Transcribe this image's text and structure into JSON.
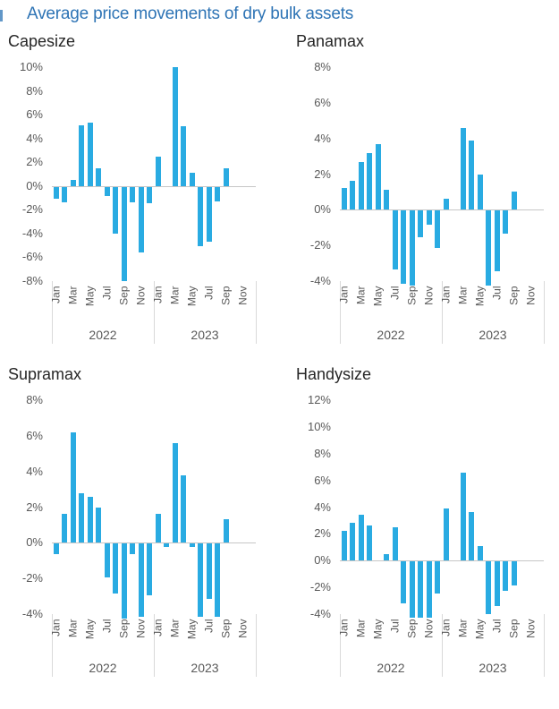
{
  "page": {
    "title": "Average price movements of dry bulk assets",
    "colors": {
      "title_blue": "#2e74b5",
      "bar_blue": "#29abe2",
      "axis_text_grey": "#595959",
      "zero_line_grey": "#c6c6c6",
      "separator_grey": "#d9d9d9",
      "chart_title_dark": "#262626",
      "background": "#ffffff"
    }
  },
  "chart_data": [
    {
      "type": "bar",
      "title": "Capesize",
      "ylabel": "",
      "xlabel": "",
      "ylim": [
        -8,
        10
      ],
      "ytick_step": 2,
      "ytick_labels": [
        "10%",
        "8%",
        "6%",
        "4%",
        "2%",
        "0%",
        "-2%",
        "-4%",
        "-6%",
        "-8%"
      ],
      "grid": "zero-axis-line-only",
      "legend": "none",
      "bar_color": "#29abe2",
      "years": [
        "2022",
        "2023"
      ],
      "month_ticks": [
        "Jan",
        "Mar",
        "May",
        "Jul",
        "Sep",
        "Nov"
      ],
      "categories": [
        "Jan 2022",
        "Feb 2022",
        "Mar 2022",
        "Apr 2022",
        "May 2022",
        "Jun 2022",
        "Jul 2022",
        "Aug 2022",
        "Sep 2022",
        "Oct 2022",
        "Nov 2022",
        "Dec 2022",
        "Jan 2023",
        "Feb 2023",
        "Mar 2023",
        "Apr 2023",
        "May 2023",
        "Jun 2023",
        "Jul 2023",
        "Aug 2023",
        "Sep 2023",
        "Oct 2023",
        "Nov 2023",
        "Dec 2023"
      ],
      "values": [
        -1.0,
        -1.3,
        0.5,
        5.1,
        5.3,
        1.5,
        -0.8,
        -3.9,
        -7.9,
        -1.3,
        -5.5,
        -1.4,
        2.5,
        0,
        10.0,
        5.0,
        1.1,
        -5.0,
        -4.6,
        -1.2,
        1.5,
        null,
        null,
        null
      ]
    },
    {
      "type": "bar",
      "title": "Panamax",
      "ylabel": "",
      "xlabel": "",
      "ylim": [
        -4,
        8
      ],
      "ytick_step": 2,
      "ytick_labels": [
        "8%",
        "6%",
        "4%",
        "2%",
        "0%",
        "-2%",
        "-4%"
      ],
      "grid": "zero-axis-line-only",
      "legend": "none",
      "bar_color": "#29abe2",
      "years": [
        "2022",
        "2023"
      ],
      "month_ticks": [
        "Jan",
        "Mar",
        "May",
        "Jul",
        "Sep",
        "Nov"
      ],
      "categories": [
        "Jan 2022",
        "Feb 2022",
        "Mar 2022",
        "Apr 2022",
        "May 2022",
        "Jun 2022",
        "Jul 2022",
        "Aug 2022",
        "Sep 2022",
        "Oct 2022",
        "Nov 2022",
        "Dec 2022",
        "Jan 2023",
        "Feb 2023",
        "Mar 2023",
        "Apr 2023",
        "May 2023",
        "Jun 2023",
        "Jul 2023",
        "Aug 2023",
        "Sep 2023",
        "Oct 2023",
        "Nov 2023",
        "Dec 2023"
      ],
      "values": [
        1.2,
        1.6,
        2.7,
        3.2,
        3.7,
        1.1,
        -3.3,
        -4.1,
        -4.2,
        -1.5,
        -0.8,
        -2.1,
        0.6,
        0,
        4.6,
        3.9,
        2.0,
        -4.2,
        -3.4,
        -1.3,
        1.0,
        null,
        null,
        null
      ]
    },
    {
      "type": "bar",
      "title": "Supramax",
      "ylabel": "",
      "xlabel": "",
      "ylim": [
        -4,
        8
      ],
      "ytick_step": 2,
      "ytick_labels": [
        "8%",
        "6%",
        "4%",
        "2%",
        "0%",
        "-2%",
        "-4%"
      ],
      "grid": "zero-axis-line-only",
      "legend": "none",
      "bar_color": "#29abe2",
      "years": [
        "2022",
        "2023"
      ],
      "month_ticks": [
        "Jan",
        "Mar",
        "May",
        "Jul",
        "Sep",
        "Nov"
      ],
      "categories": [
        "Jan 2022",
        "Feb 2022",
        "Mar 2022",
        "Apr 2022",
        "May 2022",
        "Jun 2022",
        "Jul 2022",
        "Aug 2022",
        "Sep 2022",
        "Oct 2022",
        "Nov 2022",
        "Dec 2022",
        "Jan 2023",
        "Feb 2023",
        "Mar 2023",
        "Apr 2023",
        "May 2023",
        "Jun 2023",
        "Jul 2023",
        "Aug 2023",
        "Sep 2023",
        "Oct 2023",
        "Nov 2023",
        "Dec 2023"
      ],
      "values": [
        -0.6,
        1.6,
        6.2,
        2.8,
        2.6,
        2.0,
        -1.9,
        -2.8,
        -4.2,
        -0.6,
        -4.1,
        -2.9,
        1.6,
        -0.2,
        5.6,
        3.8,
        -0.2,
        -4.1,
        -3.1,
        -4.1,
        1.3,
        null,
        null,
        null
      ]
    },
    {
      "type": "bar",
      "title": "Handysize",
      "ylabel": "",
      "xlabel": "",
      "ylim": [
        -4,
        12
      ],
      "ytick_step": 2,
      "ytick_labels": [
        "12%",
        "10%",
        "8%",
        "6%",
        "4%",
        "2%",
        "0%",
        "-2%",
        "-4%"
      ],
      "grid": "zero-axis-line-only",
      "legend": "none",
      "bar_color": "#29abe2",
      "years": [
        "2022",
        "2023"
      ],
      "month_ticks": [
        "Jan",
        "Mar",
        "May",
        "Jul",
        "Sep",
        "Nov"
      ],
      "categories": [
        "Jan 2022",
        "Feb 2022",
        "Mar 2022",
        "Apr 2022",
        "May 2022",
        "Jun 2022",
        "Jul 2022",
        "Aug 2022",
        "Sep 2022",
        "Oct 2022",
        "Nov 2022",
        "Dec 2022",
        "Jan 2023",
        "Feb 2023",
        "Mar 2023",
        "Apr 2023",
        "May 2023",
        "Jun 2023",
        "Jul 2023",
        "Aug 2023",
        "Sep 2023",
        "Oct 2023",
        "Nov 2023",
        "Dec 2023"
      ],
      "values": [
        2.2,
        2.8,
        3.4,
        2.6,
        0,
        0.5,
        2.5,
        -3.1,
        -4.2,
        -4.2,
        -4.2,
        -2.4,
        3.9,
        0,
        6.6,
        3.6,
        1.1,
        -3.9,
        -3.3,
        -2.2,
        -1.8,
        null,
        null,
        null
      ]
    }
  ]
}
